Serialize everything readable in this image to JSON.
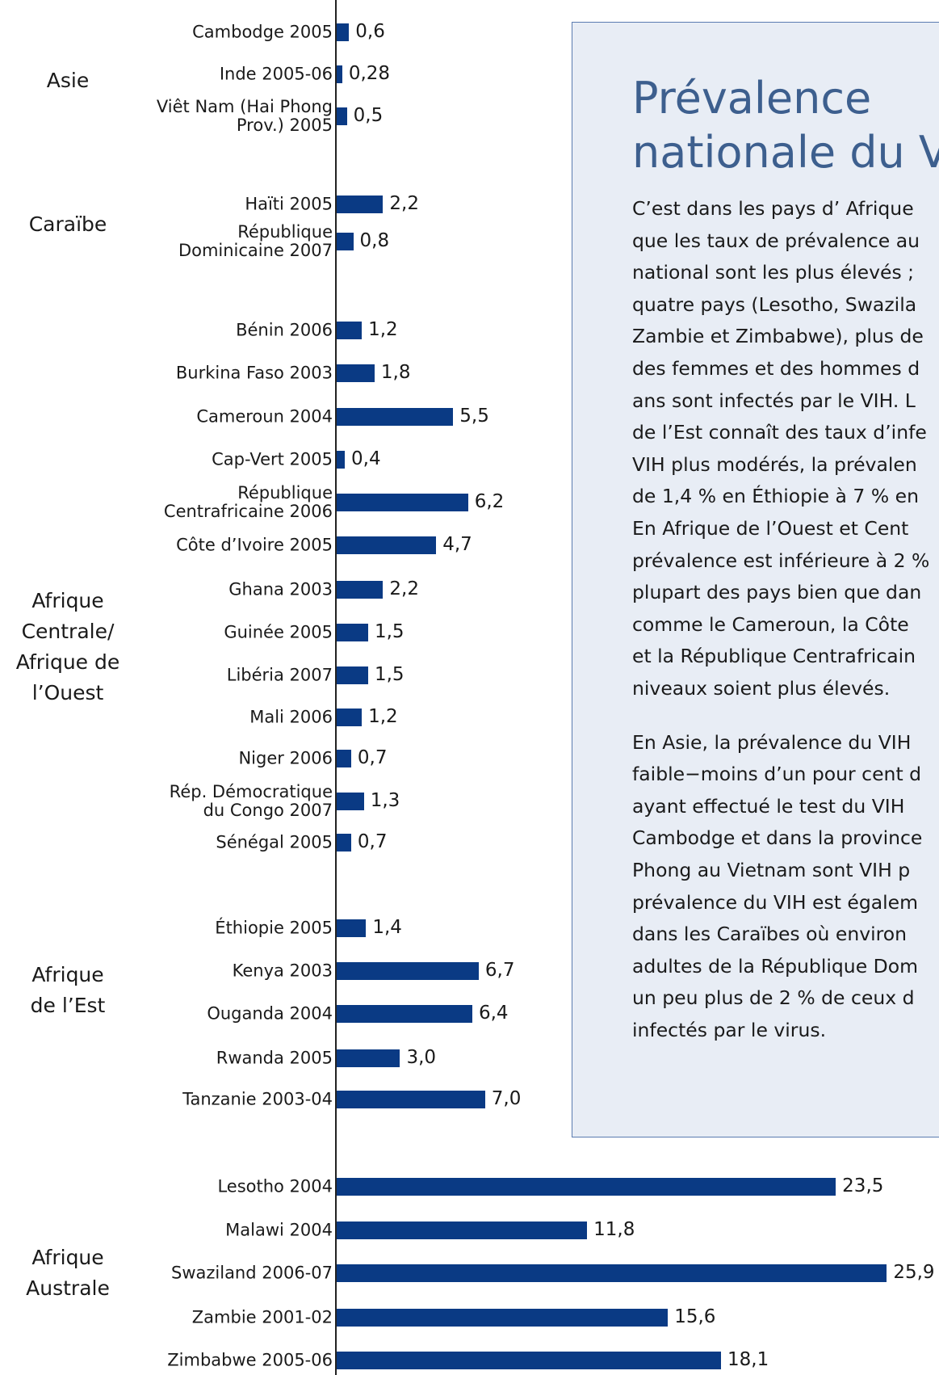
{
  "chart_data": {
    "type": "bar",
    "orientation": "horizontal",
    "color": "#0a3a84",
    "xlim": [
      0,
      26
    ],
    "groups": [
      {
        "name": "Asie",
        "categories": [
          "Cambodge 2005",
          "Inde 2005-06",
          "Viêt Nam (Hai Phong\nProv.) 2005"
        ],
        "values": [
          0.6,
          0.28,
          0.5
        ],
        "value_labels": [
          "0,6",
          "0,28",
          "0,5"
        ]
      },
      {
        "name": "Caraïbe",
        "categories": [
          "Haïti 2005",
          "République\nDominicaine 2007"
        ],
        "values": [
          2.2,
          0.8
        ],
        "value_labels": [
          "2,2",
          "0,8"
        ]
      },
      {
        "name": "Afrique\nCentrale/\nAfrique de\nl’Ouest",
        "categories": [
          "Bénin 2006",
          "Burkina Faso  2003",
          "Cameroun 2004",
          "Cap-Vert 2005",
          "République\nCentrafricaine 2006",
          "Côte d’Ivoire 2005",
          "Ghana 2003",
          "Guinée 2005",
          "Libéria 2007",
          "Mali 2006",
          "Niger 2006",
          "Rép. Démocratique\ndu Congo 2007",
          "Sénégal 2005"
        ],
        "values": [
          1.2,
          1.8,
          5.5,
          0.4,
          6.2,
          4.7,
          2.2,
          1.5,
          1.5,
          1.2,
          0.7,
          1.3,
          0.7
        ],
        "value_labels": [
          "1,2",
          "1,8",
          "5,5",
          "0,4",
          "6,2",
          "4,7",
          "2,2",
          "1,5",
          "1,5",
          "1,2",
          "0,7",
          "1,3",
          "0,7"
        ]
      },
      {
        "name": "Afrique\nde l’Est",
        "categories": [
          "Éthiopie 2005",
          "Kenya 2003",
          "Ouganda 2004",
          "Rwanda 2005",
          "Tanzanie 2003-04"
        ],
        "values": [
          1.4,
          6.7,
          6.4,
          3.0,
          7.0
        ],
        "value_labels": [
          "1,4",
          "6,7",
          "6,4",
          "3,0",
          "7,0"
        ]
      },
      {
        "name": "Afrique\nAustrale",
        "categories": [
          "Lesotho 2004",
          "Malawi 2004",
          "Swaziland 2006-07",
          "Zambie 2001-02",
          "Zimbabwe 2005-06"
        ],
        "values": [
          23.5,
          11.8,
          25.9,
          15.6,
          18.1
        ],
        "value_labels": [
          "23,5",
          "11,8",
          "25,9",
          "15,6",
          "18,1"
        ]
      }
    ]
  },
  "panel": {
    "title": "Prévalence\nnationale du V",
    "paragraphs": [
      [
        "C’est dans les pays d’ Afrique",
        "que les taux de prévalence au",
        "national sont les plus élevés ;",
        "quatre pays (Lesotho, Swazila",
        "Zambie et Zimbabwe), plus de",
        "des femmes et des hommes d",
        "ans sont infectés par le VIH. L",
        "de l’Est connaît des taux d’infe",
        "VIH plus modérés, la prévalen",
        "de 1,4 % en Éthiopie à 7 % en",
        "En Afrique de l’Ouest et Cent",
        "prévalence est inférieure à 2 %",
        "plupart des pays bien que dan",
        "comme le Cameroun, la Côte",
        "et la République Centrafricain",
        "niveaux soient plus élevés."
      ],
      [
        "En Asie, la prévalence du VIH",
        "faible−moins d’un pour cent d",
        "ayant effectué le test du VIH",
        "Cambodge et dans la province",
        "Phong au Vietnam sont VIH p",
        "prévalence du VIH est égalem",
        "dans les Caraïbes où environ",
        "adultes de la République Dom",
        "un peu plus de 2 % de ceux d",
        "infectés par le virus."
      ]
    ]
  }
}
